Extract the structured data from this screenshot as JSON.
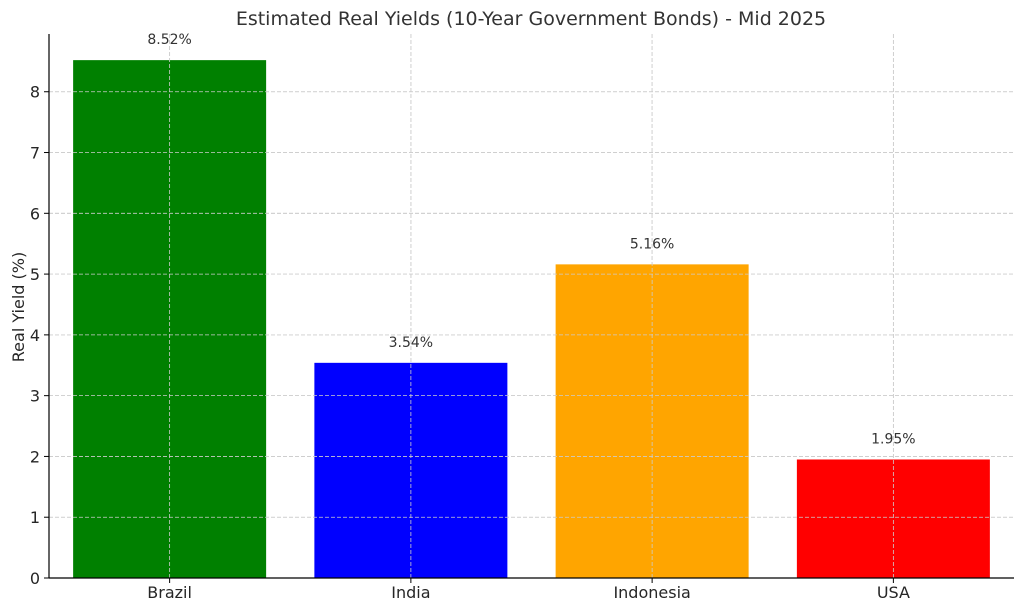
{
  "chart_data": {
    "type": "bar",
    "title": "Estimated Real Yields (10-Year Government Bonds) - Mid 2025",
    "xlabel": "",
    "ylabel": "Real Yield (%)",
    "categories": [
      "Brazil",
      "India",
      "Indonesia",
      "USA"
    ],
    "values": [
      8.52,
      3.54,
      5.16,
      1.95
    ],
    "value_labels": [
      "8.52%",
      "3.54%",
      "5.16%",
      "1.95%"
    ],
    "colors": [
      "#008000",
      "#0000ff",
      "#ffa500",
      "#ff0000"
    ],
    "ylim": [
      0,
      8.95
    ],
    "yticks": [
      0,
      1,
      2,
      3,
      4,
      5,
      6,
      7,
      8
    ],
    "grid": true,
    "legend": false
  }
}
